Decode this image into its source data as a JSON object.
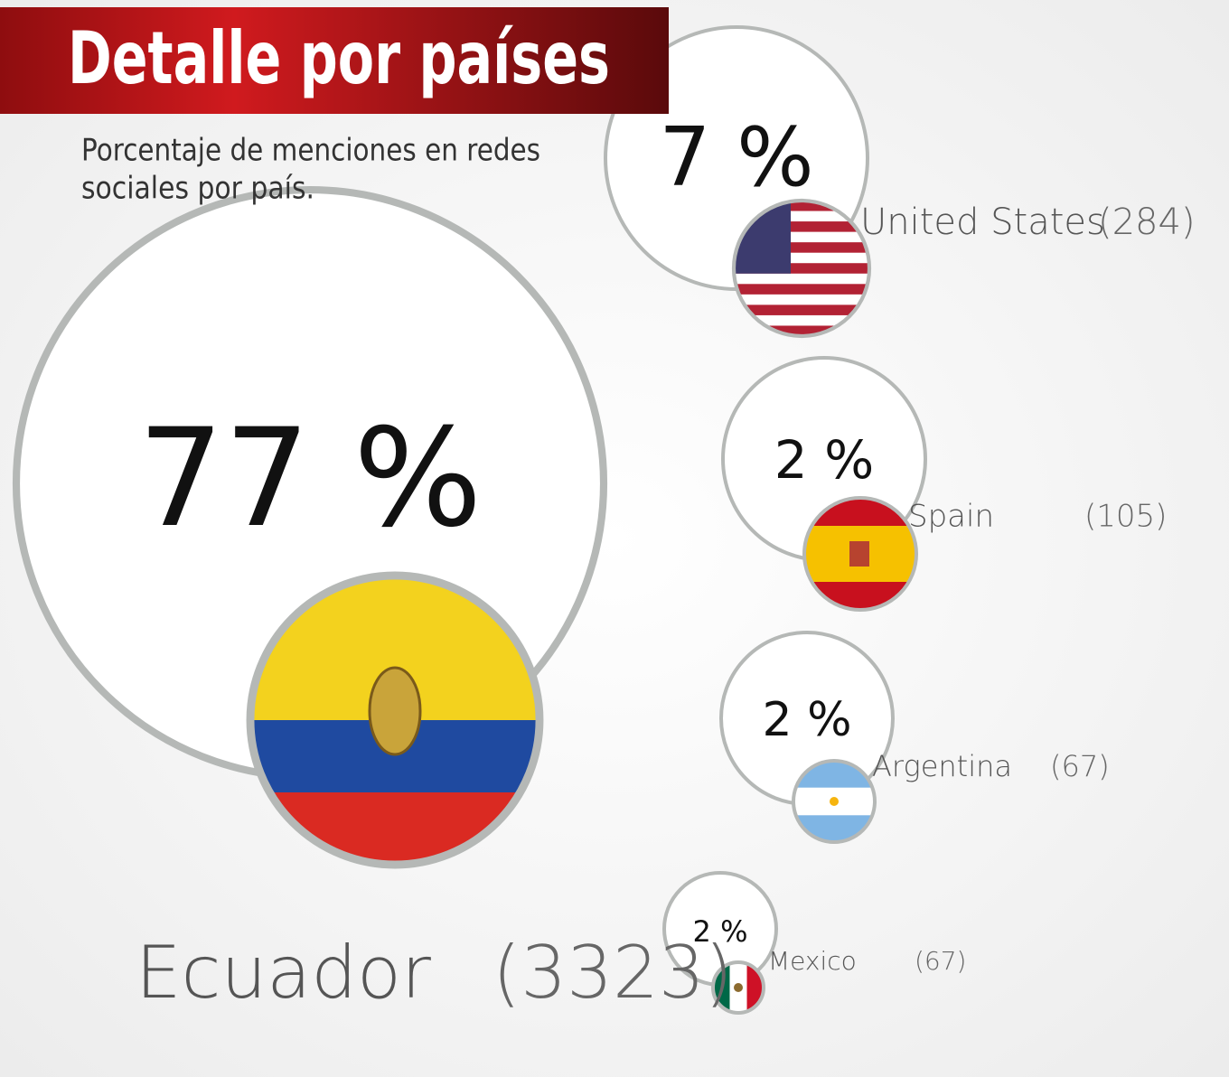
{
  "chart_data": {
    "type": "bubble",
    "title": "Detalle por países",
    "subtitle_lines": [
      "Porcentaje de menciones en redes",
      "sociales por país."
    ],
    "categories": [
      "Ecuador",
      "United States",
      "Spain",
      "Argentina",
      "Mexico"
    ],
    "values": [
      77,
      7,
      2,
      2,
      2
    ],
    "value_labels": [
      "77 %",
      "7 %",
      "2 %",
      "2 %",
      "2 %"
    ],
    "counts": [
      3323,
      284,
      105,
      67,
      67
    ],
    "count_labels": [
      "(3323)",
      "(284)",
      "(105)",
      "(67)",
      "(67)"
    ],
    "bubble_color": "#ffffff",
    "border_color": "#b5b8b6"
  }
}
